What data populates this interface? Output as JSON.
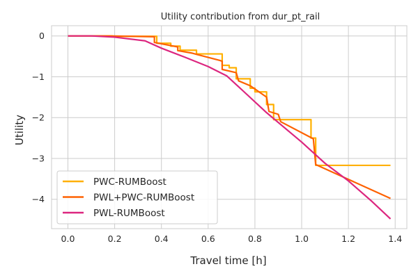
{
  "chart_data": {
    "type": "line",
    "title": "Utility contribution from dur_pt_rail",
    "xlabel": "Travel time [h]",
    "ylabel": "Utility",
    "xlim": [
      -0.07,
      1.45
    ],
    "ylim": [
      -4.72,
      0.25
    ],
    "xticks": [
      0.0,
      0.2,
      0.4,
      0.6,
      0.8,
      1.0,
      1.2,
      1.4
    ],
    "xtick_labels": [
      "0.0",
      "0.2",
      "0.4",
      "0.6",
      "0.8",
      "1.0",
      "1.2",
      "1.4"
    ],
    "yticks": [
      0,
      -1,
      -2,
      -3,
      -4
    ],
    "ytick_labels": [
      "0",
      "−1",
      "−2",
      "−3",
      "−4"
    ],
    "grid": true,
    "legend_position": "lower-left",
    "series": [
      {
        "name": "PWC-RUMBoost",
        "color": "#FFB000",
        "step": true,
        "x": [
          0.0,
          0.19,
          0.38,
          0.44,
          0.48,
          0.55,
          0.66,
          0.69,
          0.72,
          0.78,
          0.8,
          0.85,
          0.88,
          0.91,
          1.04,
          1.06,
          1.38
        ],
        "y": [
          0.0,
          -0.01,
          -0.18,
          -0.25,
          -0.35,
          -0.44,
          -0.72,
          -0.78,
          -1.05,
          -1.28,
          -1.37,
          -1.68,
          -2.05,
          -2.05,
          -2.5,
          -3.17,
          -3.17
        ]
      },
      {
        "name": "PWL+PWC-RUMBoost",
        "color": "#FE6100",
        "x": [
          0.0,
          0.18,
          0.37,
          0.37,
          0.47,
          0.47,
          0.53,
          0.55,
          0.65,
          0.66,
          0.66,
          0.72,
          0.73,
          0.78,
          0.85,
          0.86,
          0.9,
          0.91,
          1.05,
          1.06,
          1.38
        ],
        "y": [
          0.0,
          0.0,
          -0.02,
          -0.16,
          -0.27,
          -0.36,
          -0.42,
          -0.45,
          -0.6,
          -0.62,
          -0.82,
          -0.9,
          -1.1,
          -1.22,
          -1.5,
          -1.85,
          -1.92,
          -2.1,
          -2.52,
          -3.15,
          -3.98
        ]
      },
      {
        "name": "PWL-RUMBoost",
        "color": "#DC267F",
        "x": [
          0.0,
          0.1,
          0.2,
          0.33,
          0.4,
          0.5,
          0.6,
          0.68,
          0.75,
          0.85,
          1.0,
          1.1,
          1.2,
          1.3,
          1.38
        ],
        "y": [
          0.0,
          0.0,
          -0.03,
          -0.12,
          -0.3,
          -0.52,
          -0.75,
          -0.98,
          -1.35,
          -1.88,
          -2.6,
          -3.12,
          -3.55,
          -4.05,
          -4.48
        ]
      }
    ]
  }
}
